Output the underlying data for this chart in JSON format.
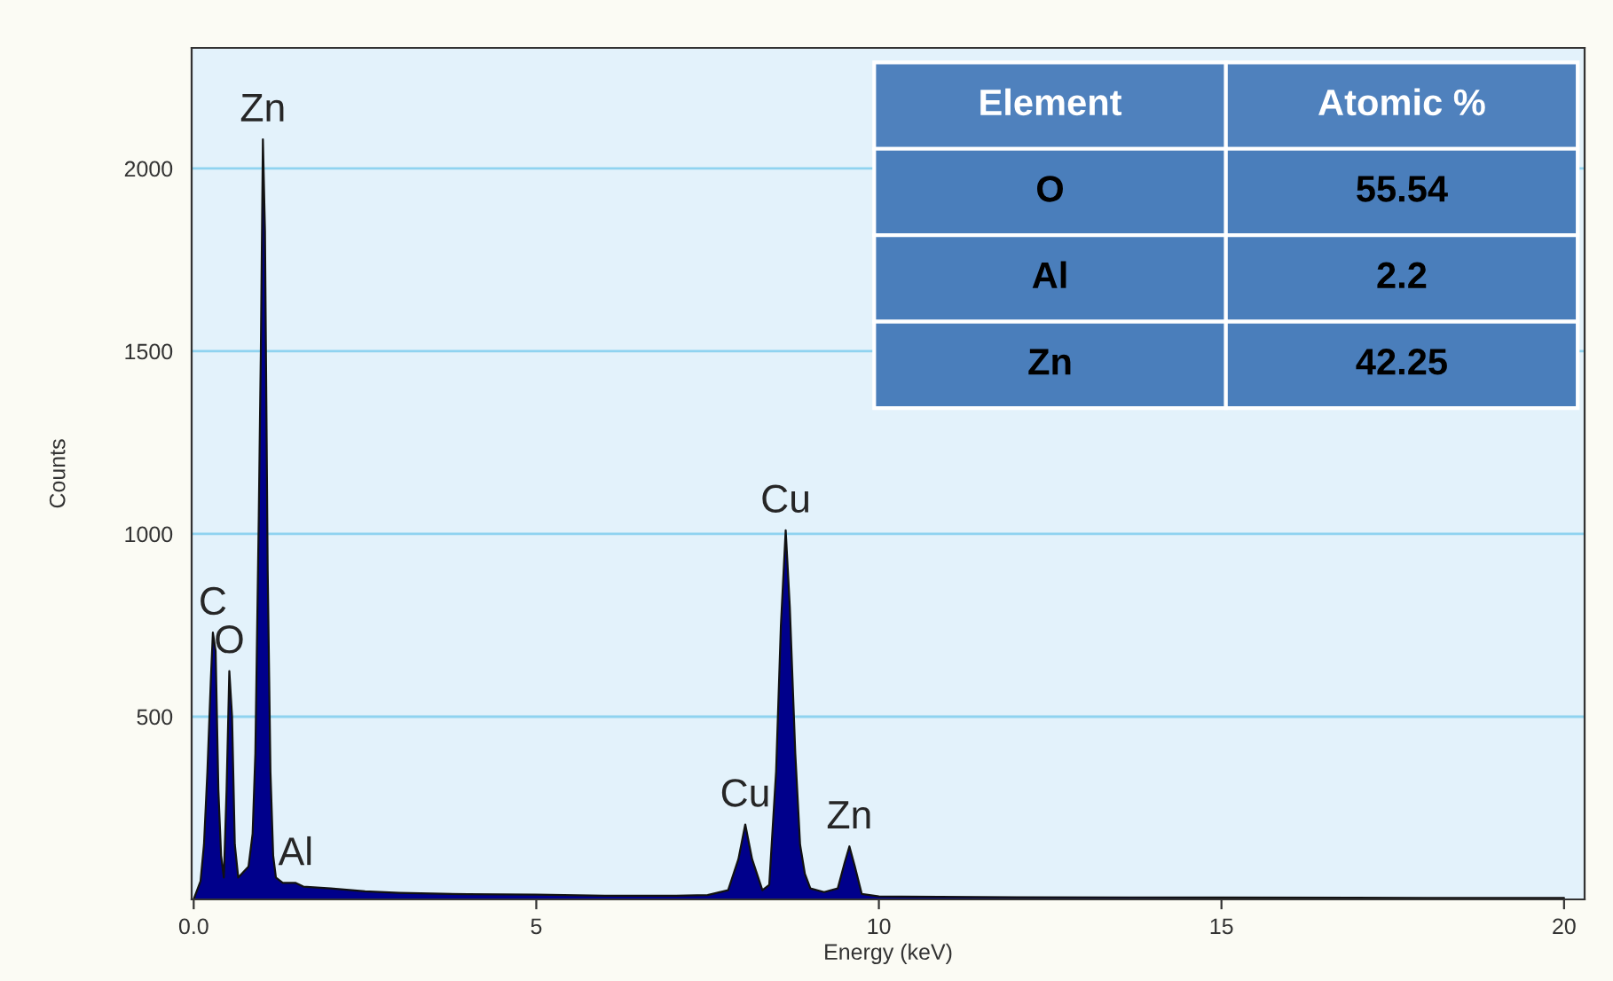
{
  "chart_data": {
    "type": "area",
    "xlabel": "Energy (keV)",
    "ylabel": "Counts",
    "xlim": [
      -0.03,
      20.3
    ],
    "ylim": [
      0,
      2330
    ],
    "xticks": [
      {
        "value": 0,
        "label": "0.0"
      },
      5,
      10,
      15,
      20
    ],
    "yticks": [
      500,
      1000,
      1500,
      2000
    ],
    "grid": "y",
    "legend": false,
    "series": [
      {
        "color": "#00008b",
        "x": [
          0,
          0.1,
          0.15,
          0.2,
          0.25,
          0.28,
          0.32,
          0.36,
          0.4,
          0.44,
          0.48,
          0.52,
          0.56,
          0.6,
          0.65,
          0.7,
          0.8,
          0.86,
          0.9,
          0.95,
          0.98,
          1.01,
          1.04,
          1.08,
          1.12,
          1.16,
          1.2,
          1.3,
          1.49,
          1.6,
          2,
          2.5,
          3,
          4,
          5,
          6,
          7,
          7.5,
          7.8,
          7.95,
          8.05,
          8.15,
          8.3,
          8.4,
          8.5,
          8.57,
          8.64,
          8.7,
          8.78,
          8.85,
          8.92,
          9.0,
          9.2,
          9.4,
          9.5,
          9.57,
          9.65,
          9.75,
          10,
          12,
          15,
          18,
          20
        ],
        "values": [
          0,
          50,
          150,
          350,
          600,
          730,
          680,
          300,
          120,
          60,
          300,
          625,
          500,
          150,
          60,
          70,
          90,
          180,
          400,
          1050,
          1500,
          2080,
          1830,
          900,
          350,
          120,
          60,
          45,
          45,
          35,
          30,
          22,
          18,
          14,
          13,
          10,
          10,
          12,
          25,
          110,
          205,
          110,
          25,
          40,
          350,
          750,
          1010,
          800,
          400,
          150,
          70,
          30,
          20,
          30,
          100,
          145,
          90,
          15,
          8,
          6,
          5,
          4,
          4
        ]
      }
    ],
    "annotations": [
      {
        "text": "C",
        "x": 0.28,
        "y": 730
      },
      {
        "text": "O",
        "x": 0.52,
        "y": 625
      },
      {
        "text": "Zn",
        "x": 1.01,
        "y": 2080
      },
      {
        "text": "Al",
        "x": 1.49,
        "y": 45
      },
      {
        "text": "Cu",
        "x": 8.05,
        "y": 205
      },
      {
        "text": "Cu",
        "x": 8.64,
        "y": 1010
      },
      {
        "text": "Zn",
        "x": 9.57,
        "y": 145
      },
      "Element",
      "Atomic %",
      "O",
      "55.54",
      "Al",
      "2.2",
      "Zn",
      "42.25"
    ]
  }
}
